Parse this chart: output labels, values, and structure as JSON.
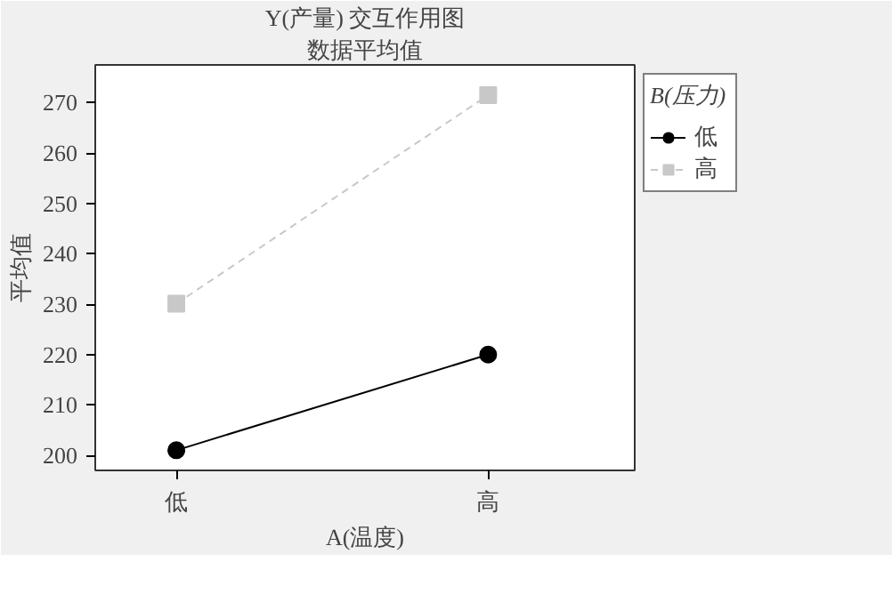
{
  "chart_data": {
    "type": "line",
    "title": "Y(产量) 交互作用图",
    "subtitle": "数据平均值",
    "xlabel": "A(温度)",
    "ylabel": "平均值",
    "legend_title": "B(压力)",
    "categories": [
      "低",
      "高"
    ],
    "series": [
      {
        "name": "低",
        "color": "#000000",
        "values": [
          201,
          220
        ],
        "marker": "circle",
        "line_style": "solid"
      },
      {
        "name": "高",
        "color": "#c8c8c8",
        "values": [
          230.1,
          271.5
        ],
        "marker": "square",
        "line_style": "dashed"
      }
    ],
    "ylim": [
      197,
      277.5
    ],
    "yticks": [
      200,
      210,
      220,
      230,
      240,
      250,
      260,
      270
    ],
    "grid": false,
    "legend": "right"
  }
}
